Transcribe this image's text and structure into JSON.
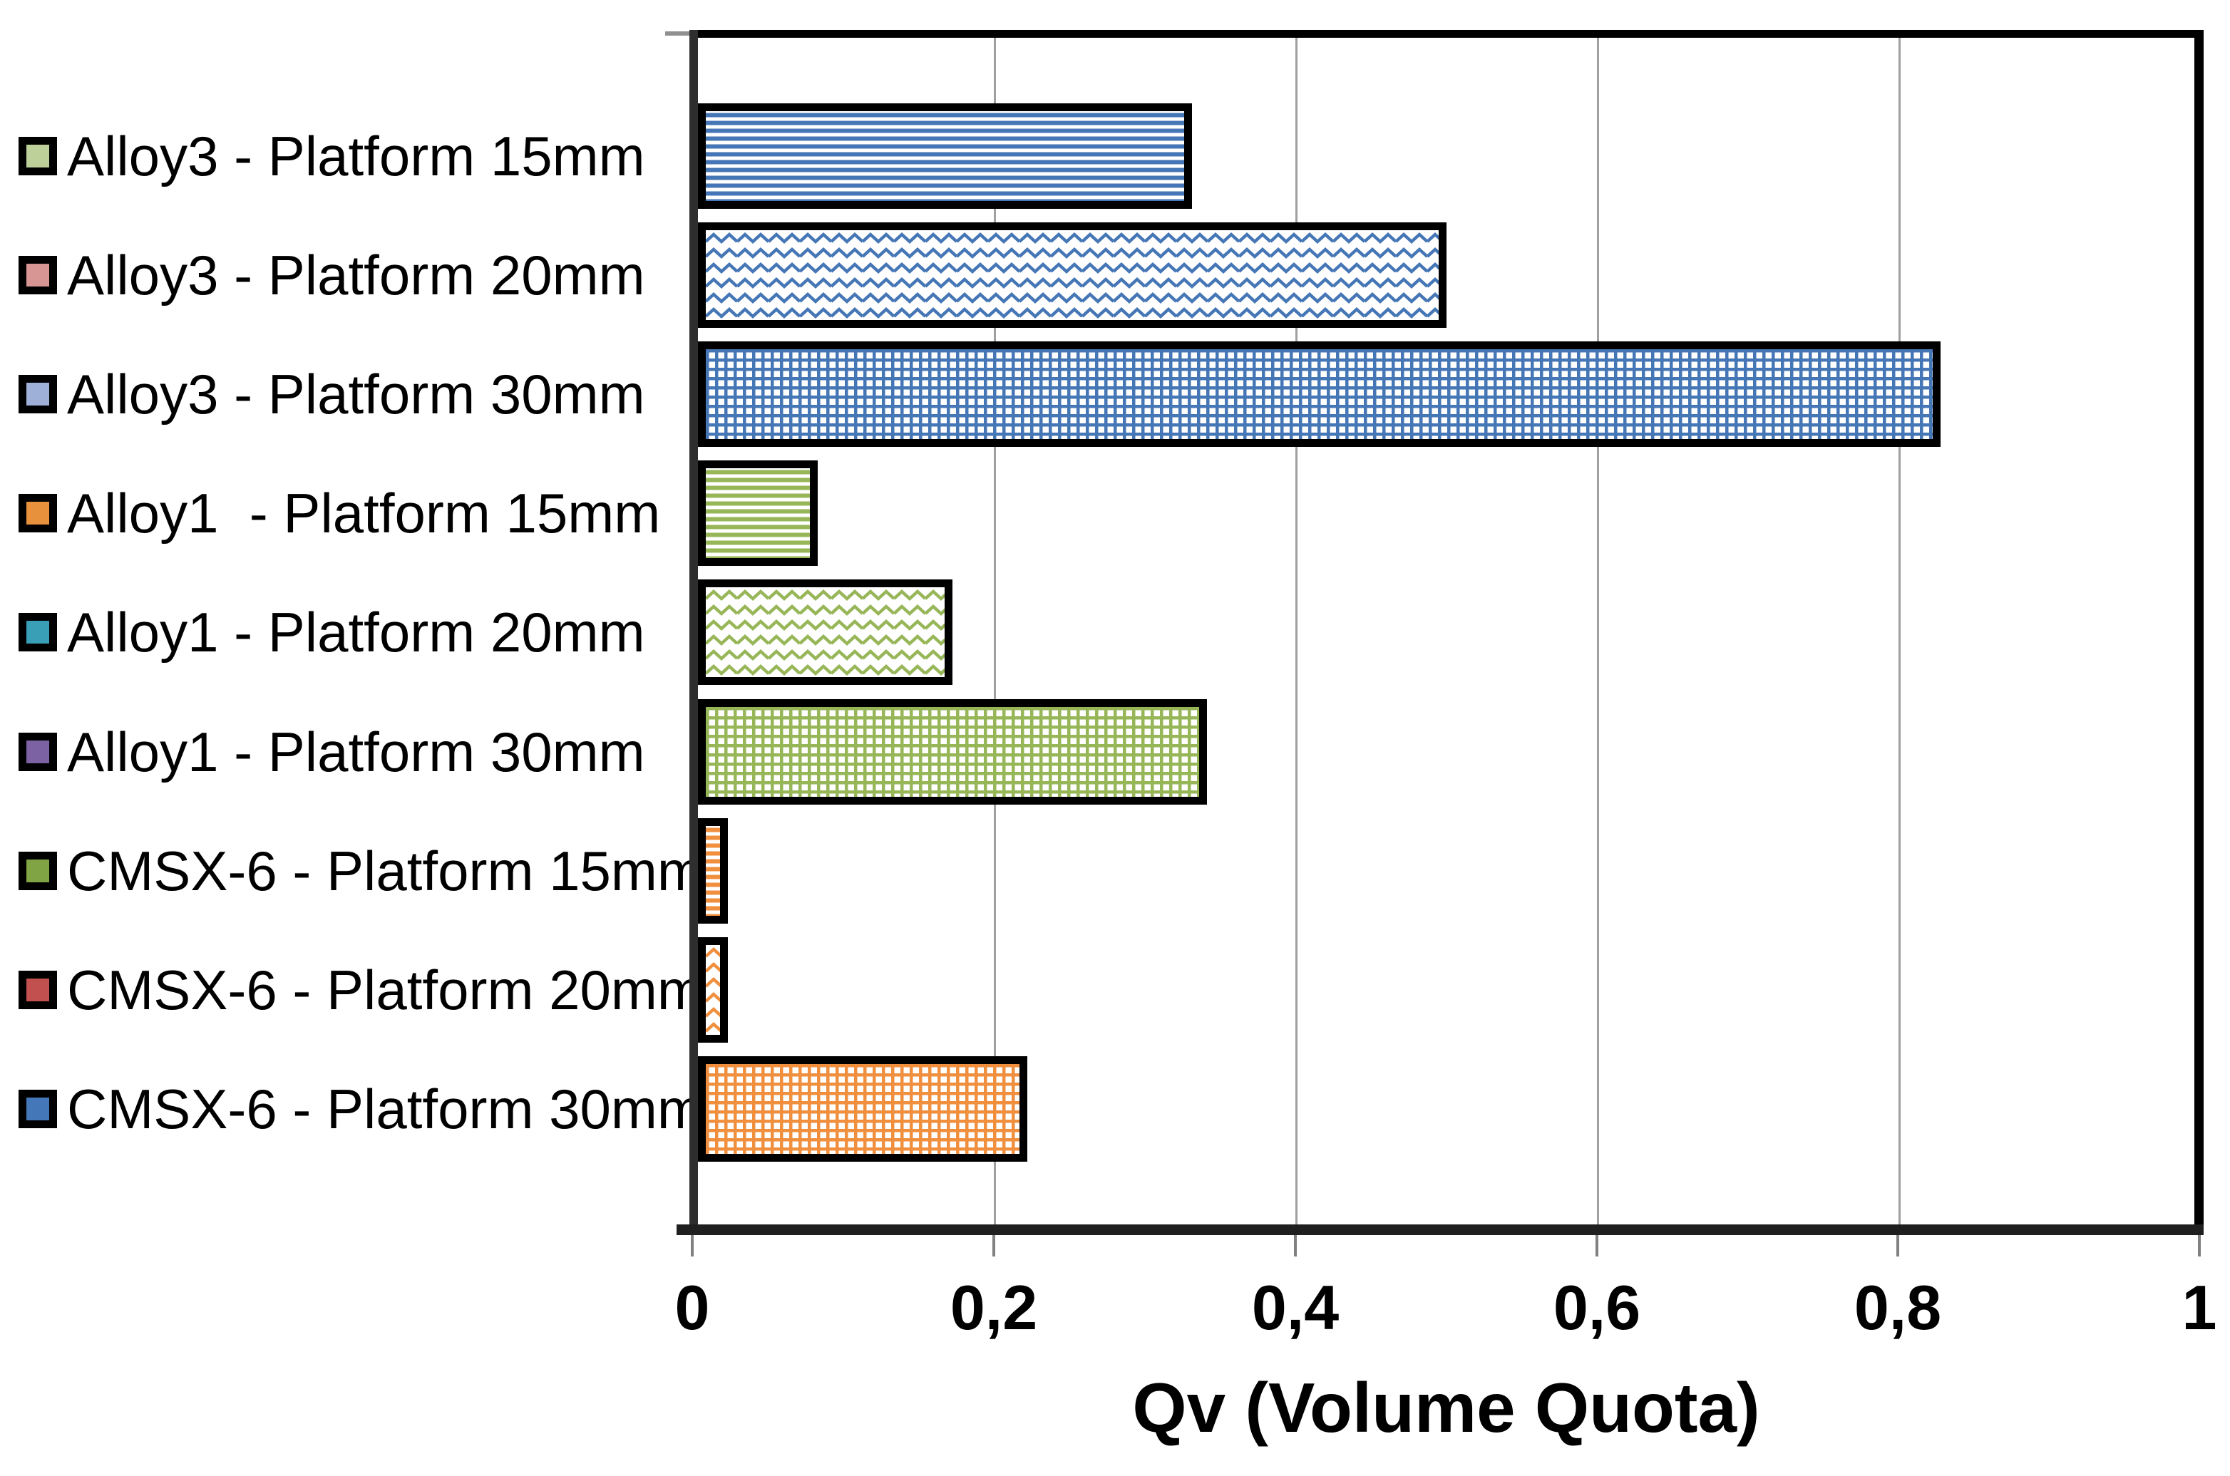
{
  "chart_data": {
    "type": "bar",
    "orientation": "horizontal",
    "title": "",
    "xlabel": "Qv (Volume Quota)",
    "xlim": [
      0,
      1
    ],
    "x_ticks": [
      "0",
      "0,2",
      "0,4",
      "0,6",
      "0,8",
      "1"
    ],
    "x_tick_values": [
      0,
      0.2,
      0.4,
      0.6,
      0.8,
      1
    ],
    "grid": "vertical gridlines at 0.2 intervals",
    "legend_position": "left",
    "categories": [
      "Alloy3 - Platform 15mm",
      "Alloy3 - Platform 20mm",
      "Alloy3 - Platform 30mm",
      "Alloy1  - Platform 15mm",
      "Alloy1 - Platform 20mm",
      "Alloy1 - Platform 30mm",
      "CMSX-6 - Platform 15mm",
      "CMSX-6 - Platform 20mm",
      "CMSX-6 - Platform 30mm"
    ],
    "values": [
      0.33,
      0.5,
      0.83,
      0.08,
      0.17,
      0.34,
      0.02,
      0.02,
      0.22
    ],
    "bar_patterns": [
      "horizontal-stripes",
      "wave",
      "grid",
      "horizontal-stripes",
      "wave",
      "grid",
      "horizontal-stripes",
      "wave",
      "grid"
    ],
    "bar_color_groups": [
      "blue",
      "blue",
      "blue",
      "green",
      "green",
      "green",
      "orange",
      "orange",
      "orange"
    ],
    "colors": {
      "blue": "#4576b5",
      "green": "#97b657",
      "orange": "#f08f3e"
    },
    "bar_border_color": "#000000"
  },
  "legend": {
    "items": [
      {
        "label": "Alloy3 - Platform 15mm",
        "swatch_color": "#bdd09a"
      },
      {
        "label": "Alloy3 - Platform 20mm",
        "swatch_color": "#d79594"
      },
      {
        "label": "Alloy3 - Platform 30mm",
        "swatch_color": "#9fb0d8"
      },
      {
        "label": "Alloy1  - Platform 15mm",
        "swatch_color": "#e8913d"
      },
      {
        "label": "Alloy1 - Platform 20mm",
        "swatch_color": "#399fb7"
      },
      {
        "label": "Alloy1 - Platform 30mm",
        "swatch_color": "#7d62a3"
      },
      {
        "label": "CMSX-6 - Platform 15mm",
        "swatch_color": "#80a344"
      },
      {
        "label": "CMSX-6 - Platform 20mm",
        "swatch_color": "#c1504e"
      },
      {
        "label": "CMSX-6 - Platform 30mm",
        "swatch_color": "#4377b7"
      }
    ]
  },
  "axis": {
    "title": "Qv (Volume Quota)"
  }
}
